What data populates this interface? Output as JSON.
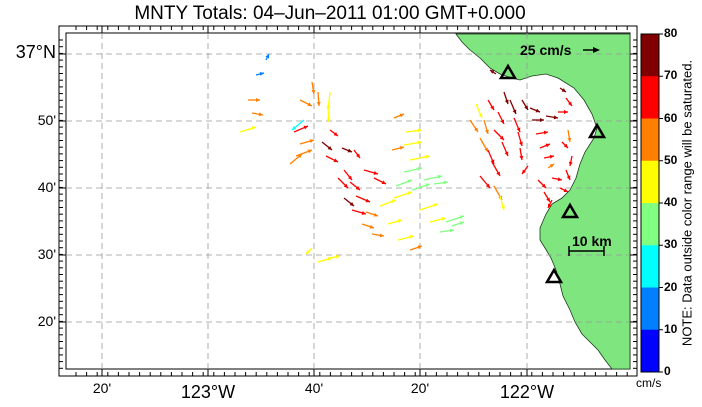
{
  "title": "MNTY Totals: 04–Jun–2011 01:00 GMT+0.000",
  "scale_label": "25 cm/s",
  "distance_label": "10 km",
  "lat_labels": [
    {
      "text": "37°N",
      "major": true
    },
    {
      "text": "50'",
      "major": false
    },
    {
      "text": "40'",
      "major": false
    },
    {
      "text": "30'",
      "major": false
    },
    {
      "text": "20'",
      "major": false
    }
  ],
  "lon_labels": [
    {
      "text": "20'",
      "major": false
    },
    {
      "text": "123°W",
      "major": true
    },
    {
      "text": "40'",
      "major": false
    },
    {
      "text": "20'",
      "major": false
    },
    {
      "text": "122°W",
      "major": true
    }
  ],
  "colorbar": {
    "ticks": [
      "80",
      "70",
      "60",
      "50",
      "40",
      "30",
      "20",
      "10",
      "0"
    ],
    "colors": [
      "#800000",
      "#ff0000",
      "#ff8000",
      "#ffff00",
      "#80ff80",
      "#00ffff",
      "#0080ff",
      "#0000ff"
    ],
    "units": "cm/s",
    "note": "NOTE: Data outside color range will be saturated."
  },
  "land_color": "#7fe57f"
}
